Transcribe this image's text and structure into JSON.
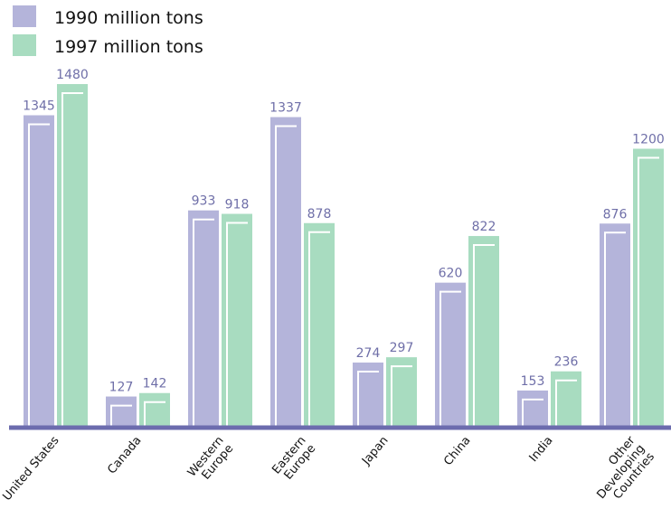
{
  "chart_data": {
    "type": "bar",
    "categories": [
      "United States",
      "Canada",
      "Western Europe",
      "Eastern Europe",
      "Japan",
      "China",
      "India",
      "Other Developing Countries"
    ],
    "series": [
      {
        "name": "1990 million tons",
        "values": [
          1345,
          127,
          933,
          1337,
          274,
          620,
          153,
          876
        ]
      },
      {
        "name": "1997 million tons",
        "values": [
          1480,
          142,
          918,
          878,
          297,
          822,
          236,
          1200
        ]
      }
    ],
    "category_label_lines": [
      [
        "United States"
      ],
      [
        "Canada"
      ],
      [
        "Western",
        "Europe"
      ],
      [
        "Eastern",
        "Europe"
      ],
      [
        "Japan"
      ],
      [
        "China"
      ],
      [
        "India"
      ],
      [
        "Other",
        "Developing",
        "Countries"
      ]
    ],
    "legend": {
      "placement": "top-left"
    },
    "ylim": [
      0,
      1480
    ],
    "grid": false,
    "colors": {
      "series_1990": "#b4b4da",
      "series_1997": "#a8dcc0",
      "axis": "#6c6cae",
      "value_labels": "#6f6fa8"
    }
  }
}
